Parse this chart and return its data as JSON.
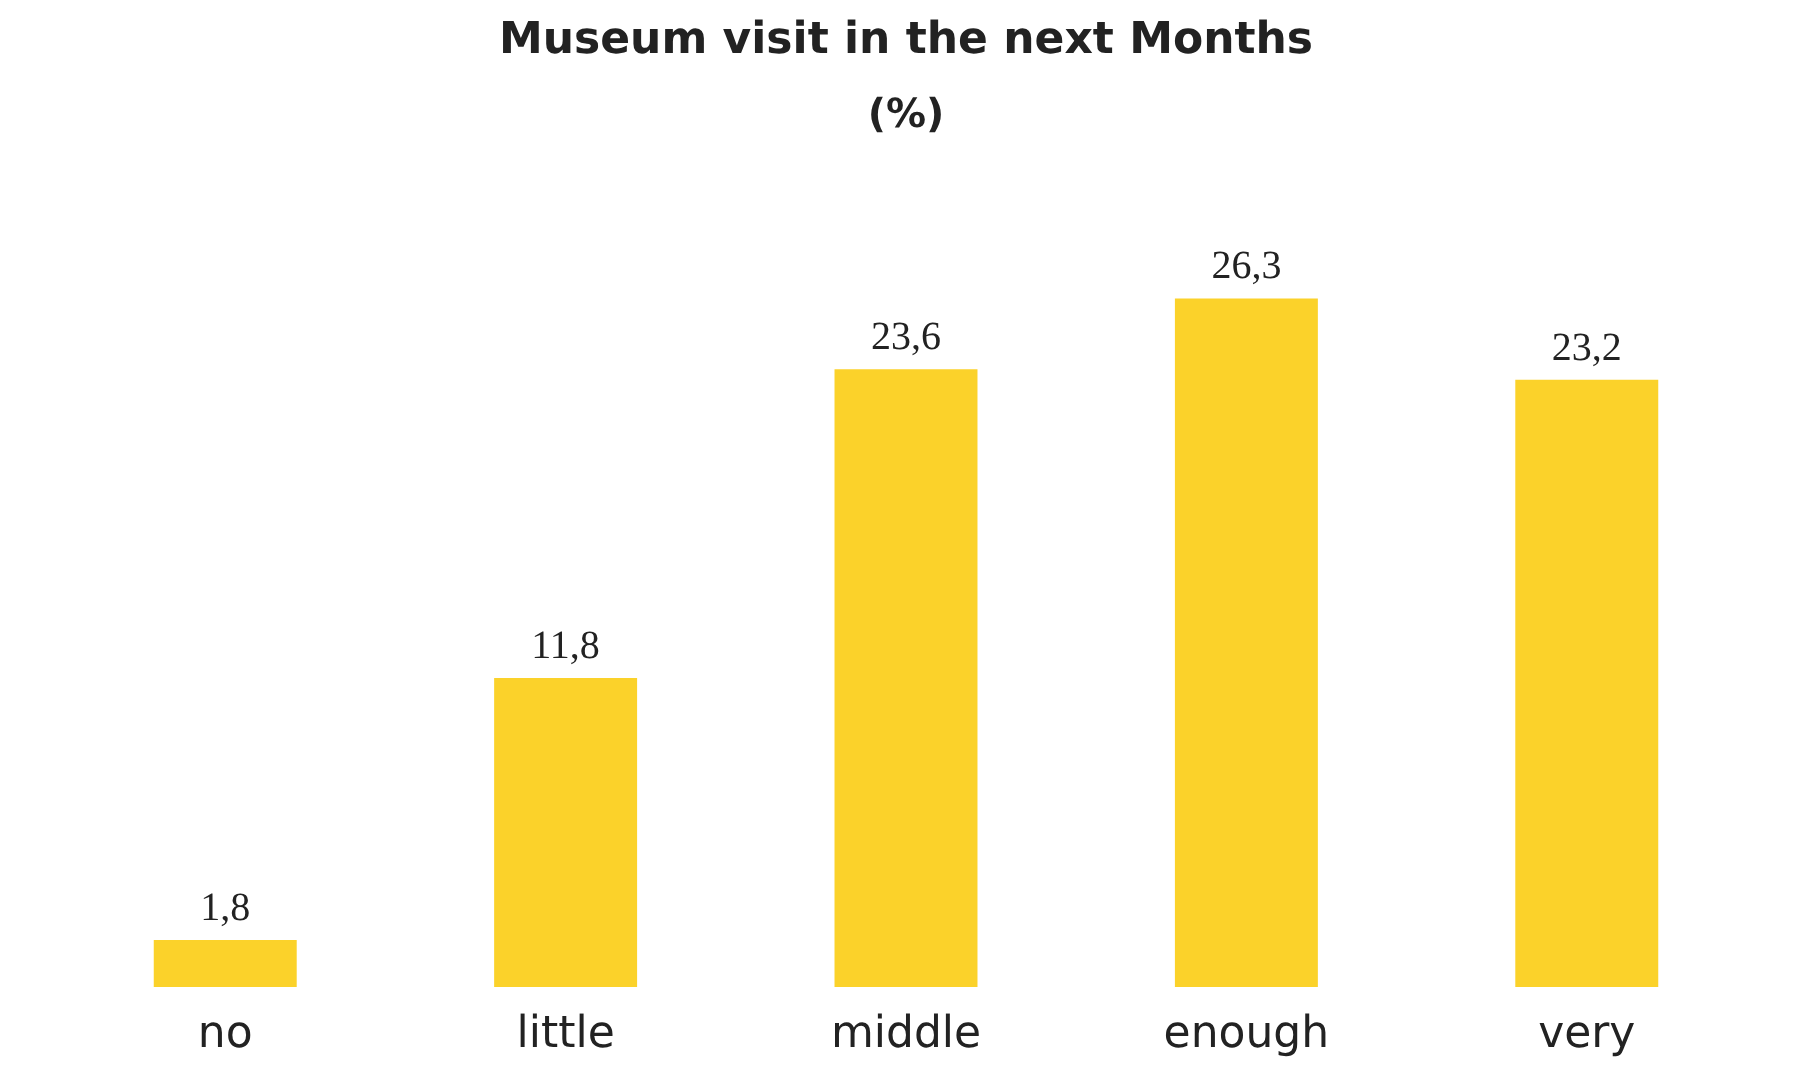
{
  "chart_data": {
    "type": "bar",
    "title": "Museum visit in the next Months",
    "subtitle": "(%)",
    "categories": [
      "no",
      "little",
      "middle",
      "enough",
      "very"
    ],
    "values": [
      1.8,
      11.8,
      23.6,
      26.3,
      23.2
    ],
    "value_labels": [
      "1,8",
      "11,8",
      "23,6",
      "26,3",
      "23,2"
    ],
    "color": "#fbd22a"
  }
}
